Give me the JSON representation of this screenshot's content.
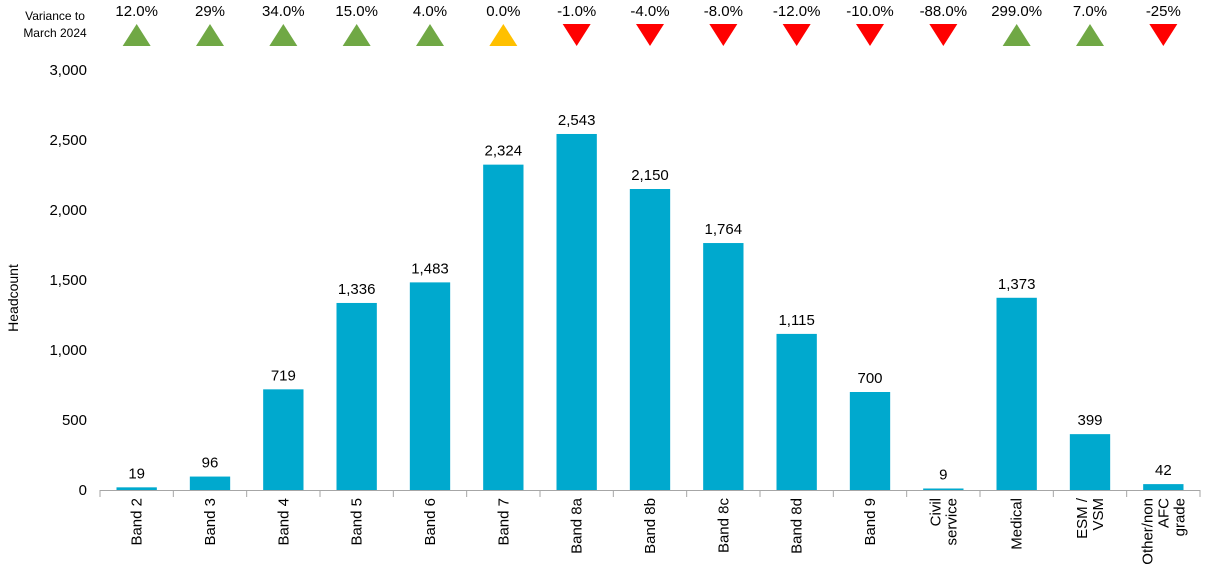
{
  "chart_data": {
    "type": "bar",
    "ylabel": "Headcount",
    "ylim": [
      0,
      3000
    ],
    "yticks": [
      "0",
      "500",
      "1,000",
      "1,500",
      "2,000",
      "2,500",
      "3,000"
    ],
    "bar_color": "#00a9ce",
    "categories": [
      [
        "Band 2"
      ],
      [
        "Band 3"
      ],
      [
        "Band 4"
      ],
      [
        "Band 5"
      ],
      [
        "Band 6"
      ],
      [
        "Band 7"
      ],
      [
        "Band 8a"
      ],
      [
        "Band 8b"
      ],
      [
        "Band 8c"
      ],
      [
        "Band 8d"
      ],
      [
        "Band 9"
      ],
      [
        "Civil",
        "service"
      ],
      [
        "Medical"
      ],
      [
        "ESM /",
        "VSM"
      ],
      [
        "Other/non",
        "AFC",
        "grade"
      ]
    ],
    "values": [
      19,
      96,
      719,
      1336,
      1483,
      2324,
      2543,
      2150,
      1764,
      1115,
      700,
      9,
      1373,
      399,
      42
    ],
    "value_labels": [
      "19",
      "96",
      "719",
      "1,336",
      "1,483",
      "2,324",
      "2,543",
      "2,150",
      "1,764",
      "1,115",
      "700",
      "9",
      "1,373",
      "399",
      "42"
    ],
    "variance_title": [
      "Variance to",
      "March 2024"
    ],
    "variance_labels": [
      "12.0%",
      "29%",
      "34.0%",
      "15.0%",
      "4.0%",
      "0.0%",
      "-1.0%",
      "-4.0%",
      "-8.0%",
      "-12.0%",
      "-10.0%",
      "-88.0%",
      "299.0%",
      "7.0%",
      "-25%"
    ],
    "variance_direction": [
      "up",
      "up",
      "up",
      "up",
      "up",
      "flat",
      "down",
      "down",
      "down",
      "down",
      "down",
      "down",
      "up",
      "up",
      "down"
    ],
    "variance_colors": {
      "up": "#70a845",
      "flat": "#ffc000",
      "down": "#ff0000"
    }
  }
}
